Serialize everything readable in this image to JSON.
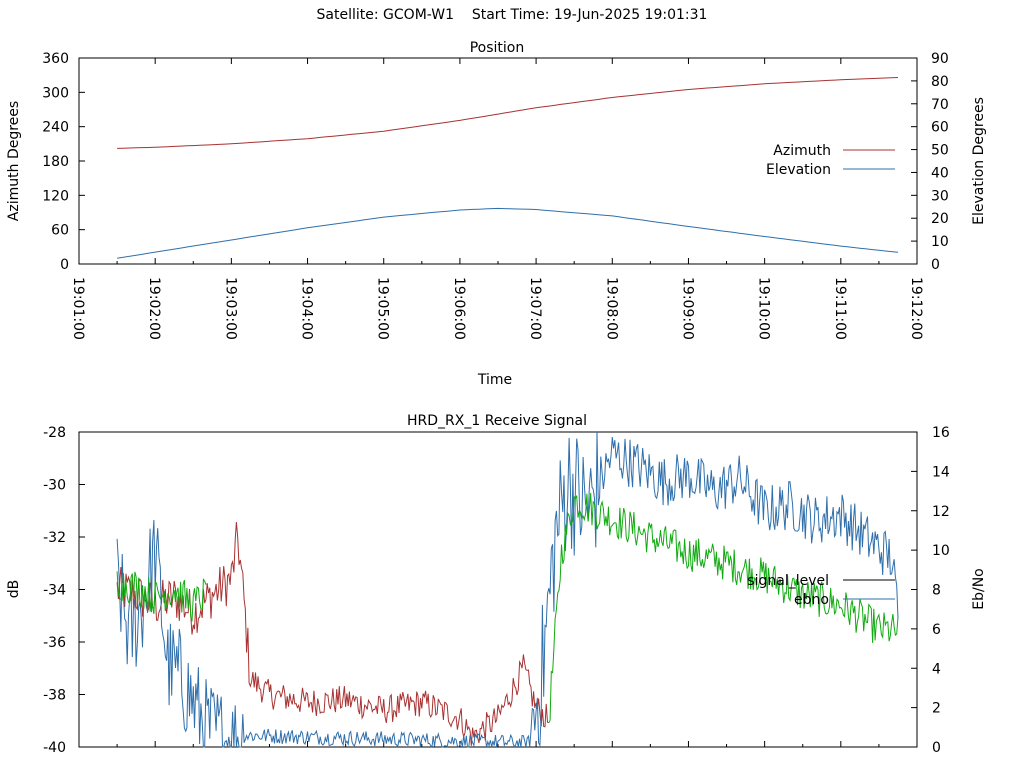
{
  "header": {
    "satellite_label": "Satellite: GCOM-W1",
    "start_label": "Start Time: 19-Jun-2025 19:01:31"
  },
  "colors": {
    "azimuth": "#a83232",
    "elevation": "#2f6fab",
    "signal_level": "#a83232",
    "signal_level_blue": "#3a6ea8",
    "ebno": "#11aa11",
    "axis": "#000000"
  },
  "chart_data": [
    {
      "type": "line",
      "title": "Position",
      "xlabel": "Time",
      "ylabel": "Azimuth Degrees",
      "y2label": "Elevation Degrees",
      "ylim": [
        0,
        360
      ],
      "y2lim": [
        0,
        90
      ],
      "yticks": [
        "0",
        "60",
        "120",
        "180",
        "240",
        "300",
        "360"
      ],
      "y2ticks": [
        "0",
        "10",
        "20",
        "30",
        "40",
        "50",
        "60",
        "70",
        "80",
        "90"
      ],
      "xticks": [
        "19:01:00",
        "19:02:00",
        "19:03:00",
        "19:04:00",
        "19:05:00",
        "19:06:00",
        "19:07:00",
        "19:08:00",
        "19:09:00",
        "19:10:00",
        "19:11:00",
        "19:12:00"
      ],
      "xlim": [
        "19:01:00",
        "19:12:00"
      ],
      "legend_position": "right",
      "series": [
        {
          "name": "Azimuth",
          "axis": "y",
          "x": [
            "19:01:30",
            "19:02:00",
            "19:03:00",
            "19:04:00",
            "19:05:00",
            "19:06:00",
            "19:06:30",
            "19:07:00",
            "19:08:00",
            "19:09:00",
            "19:10:00",
            "19:11:00",
            "19:11:45"
          ],
          "values": [
            202,
            204,
            210,
            219,
            232,
            251,
            262,
            273,
            291,
            305,
            315,
            322,
            326
          ]
        },
        {
          "name": "Elevation",
          "axis": "y2",
          "x": [
            "19:01:30",
            "19:02:00",
            "19:03:00",
            "19:04:00",
            "19:05:00",
            "19:06:00",
            "19:06:30",
            "19:07:00",
            "19:08:00",
            "19:09:00",
            "19:10:00",
            "19:11:00",
            "19:11:45"
          ],
          "values": [
            2.5,
            5.2,
            10.5,
            15.8,
            20.5,
            23.6,
            24.3,
            23.8,
            21.0,
            16.4,
            12.0,
            7.8,
            5.1
          ]
        }
      ]
    },
    {
      "type": "line",
      "title": "HRD_RX_1 Receive Signal",
      "xlabel": "",
      "ylabel": "dB",
      "y2label": "Eb/No",
      "ylim": [
        -40,
        -28
      ],
      "y2lim": [
        0,
        16
      ],
      "yticks": [
        "-28",
        "-30",
        "-32",
        "-34",
        "-36",
        "-38",
        "-40"
      ],
      "y2ticks": [
        "0",
        "2",
        "4",
        "6",
        "8",
        "10",
        "12",
        "14",
        "16"
      ],
      "xlim": [
        "19:01:00",
        "19:12:00"
      ],
      "legend_position": "right",
      "series": [
        {
          "name": "signal_level",
          "axis": "y",
          "x": [
            "19:01:30",
            "19:01:45",
            "19:02:00",
            "19:02:15",
            "19:02:30",
            "19:02:45",
            "19:03:00",
            "19:03:05",
            "19:03:10",
            "19:03:15",
            "19:03:30",
            "19:04:00",
            "19:04:30",
            "19:05:00",
            "19:05:30",
            "19:06:00",
            "19:06:10",
            "19:06:30",
            "19:06:50",
            "19:07:00",
            "19:07:10",
            "19:07:20",
            "19:07:30",
            "19:08:00",
            "19:08:30",
            "19:09:00",
            "19:09:30",
            "19:10:00",
            "19:10:30",
            "19:11:00",
            "19:11:30",
            "19:11:45"
          ],
          "values": [
            -34.0,
            -34.2,
            -34.6,
            -34.3,
            -34.9,
            -34.2,
            -33.6,
            -32.0,
            -34.5,
            -37.4,
            -38.0,
            -38.3,
            -38.2,
            -38.6,
            -38.3,
            -38.9,
            -39.6,
            -38.9,
            -37.0,
            -38.5,
            -39.0,
            -32.6,
            -30.6,
            -31.3,
            -32.0,
            -32.6,
            -33.0,
            -33.5,
            -34.2,
            -34.6,
            -35.5,
            -35.6
          ]
        },
        {
          "name": "ebno",
          "axis": "y2",
          "x": [
            "19:01:30",
            "19:01:40",
            "19:01:50",
            "19:02:00",
            "19:02:10",
            "19:02:20",
            "19:02:40",
            "19:03:00",
            "19:03:10",
            "19:06:55",
            "19:07:05",
            "19:07:15",
            "19:07:25",
            "19:07:40",
            "19:08:00",
            "19:08:20",
            "19:08:40",
            "19:09:00",
            "19:09:20",
            "19:09:40",
            "19:10:00",
            "19:10:20",
            "19:10:40",
            "19:11:00",
            "19:11:20",
            "19:11:40",
            "19:11:45"
          ],
          "values": [
            8.5,
            5.5,
            7.2,
            10.0,
            4.2,
            3.5,
            1.0,
            0.2,
            0.6,
            0.2,
            4.0,
            10.5,
            13.6,
            12.0,
            14.9,
            14.3,
            13.5,
            13.8,
            13.0,
            13.6,
            12.0,
            12.3,
            11.5,
            11.8,
            10.6,
            9.6,
            6.8
          ]
        }
      ]
    }
  ]
}
